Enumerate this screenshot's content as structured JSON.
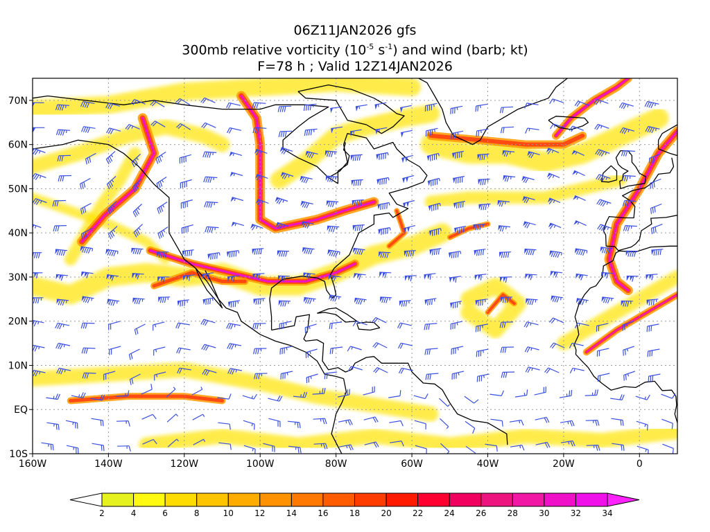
{
  "title": {
    "line1": "06Z11JAN2026 gfs",
    "line2_pre": "300mb relative vorticity (10",
    "line2_exp1": "-5",
    "line2_mid": " s",
    "line2_exp2": "-1",
    "line2_post": ") and wind (barb; kt)",
    "line3": "F=78 h ; Valid 12Z14JAN2026"
  },
  "map": {
    "lon_range": [
      -160,
      10
    ],
    "lat_range": [
      -10,
      75
    ],
    "lon_ticks": [
      {
        "value": -160,
        "label": "160W"
      },
      {
        "value": -140,
        "label": "140W"
      },
      {
        "value": -120,
        "label": "120W"
      },
      {
        "value": -100,
        "label": "100W"
      },
      {
        "value": -80,
        "label": "80W"
      },
      {
        "value": -60,
        "label": "60W"
      },
      {
        "value": -40,
        "label": "40W"
      },
      {
        "value": -20,
        "label": "20W"
      },
      {
        "value": 0,
        "label": "0"
      }
    ],
    "lat_ticks": [
      {
        "value": -10,
        "label": "10S"
      },
      {
        "value": 0,
        "label": "EQ"
      },
      {
        "value": 10,
        "label": "10N"
      },
      {
        "value": 20,
        "label": "20N"
      },
      {
        "value": 30,
        "label": "30N"
      },
      {
        "value": 40,
        "label": "40N"
      },
      {
        "value": 50,
        "label": "50N"
      },
      {
        "value": 60,
        "label": "60N"
      },
      {
        "value": 70,
        "label": "70N"
      }
    ],
    "colors": {
      "barb": "#3a4fe0",
      "coast": "#000000",
      "grid": "#9a9a9a"
    }
  },
  "colorbar": {
    "labels": [
      "2",
      "4",
      "6",
      "8",
      "10",
      "12",
      "14",
      "16",
      "18",
      "20",
      "22",
      "24",
      "26",
      "28",
      "30",
      "32",
      "34"
    ],
    "colors": [
      "#e6f21e",
      "#fffa10",
      "#ffdc00",
      "#ffc400",
      "#ffac00",
      "#ff9200",
      "#ff7800",
      "#ff5c00",
      "#ff3c00",
      "#ff1a00",
      "#ff0030",
      "#f20060",
      "#ee1480",
      "#f018a4",
      "#f010c8",
      "#f010ea"
    ],
    "under_color": "#ffffff",
    "over_color": "#ff22ff"
  }
}
